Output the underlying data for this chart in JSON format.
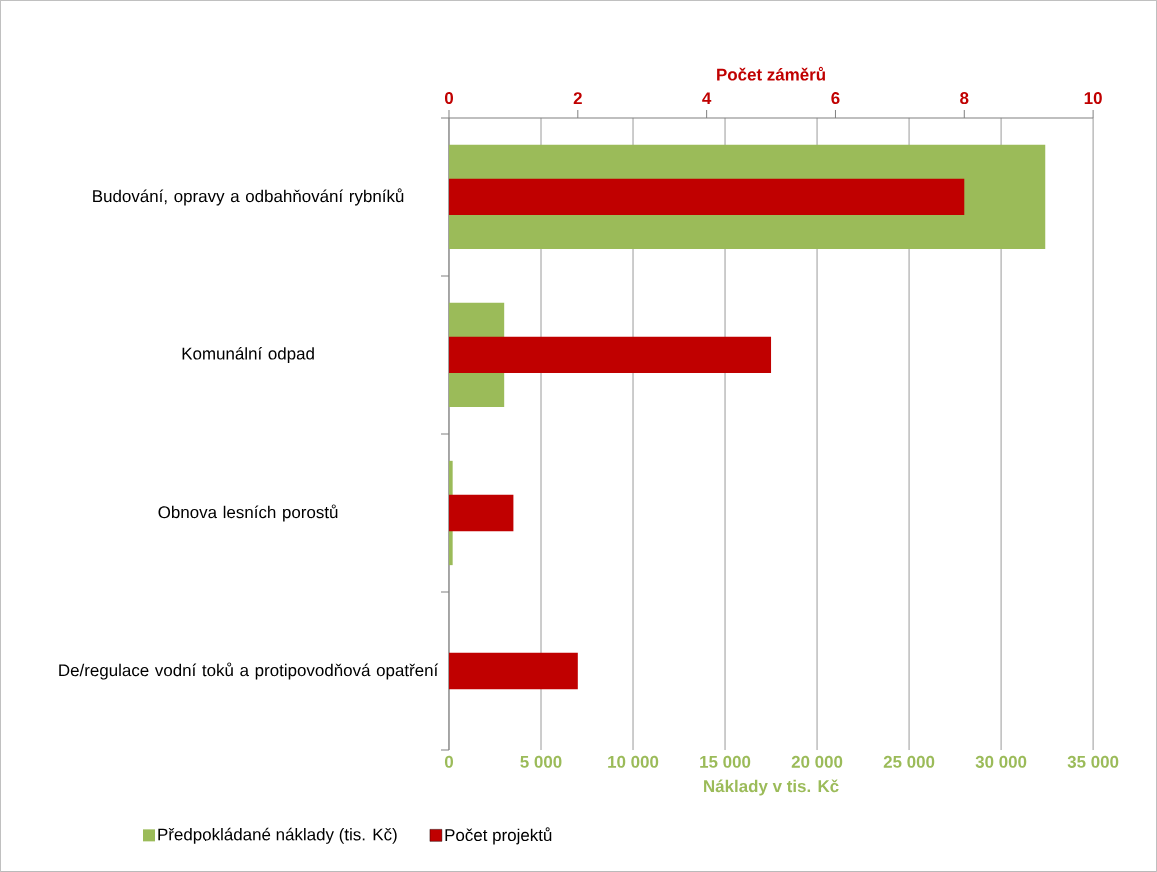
{
  "chart_data": {
    "type": "bar",
    "orientation": "horizontal",
    "categories": [
      "Budování, opravy a odbahňování rybníků",
      "Komunální odpad",
      "Obnova lesních porostů",
      "De/regulace vodní toků a protipovodňová opatření"
    ],
    "series": [
      {
        "name": "Předpokládané náklady (tis. Kč)",
        "color": "#9bbb59",
        "values": [
          32400,
          3000,
          200,
          0
        ]
      },
      {
        "name": "Počet projektů",
        "color": "#c00000",
        "axis": "x2",
        "values": [
          8,
          5,
          1,
          2
        ]
      }
    ],
    "xlabel": "Náklady v tis. Kč",
    "x2label": "Počet záměrů",
    "xlim": [
      0,
      35000
    ],
    "xticks": [
      0,
      {
        "value": 5000,
        "label": "5 000"
      },
      {
        "value": 10000,
        "label": "10 000"
      },
      {
        "value": 15000,
        "label": "15 000"
      },
      {
        "value": 20000,
        "label": "20 000"
      },
      {
        "value": 25000,
        "label": "25 000"
      },
      {
        "value": 30000,
        "label": "30 000"
      },
      {
        "value": 35000,
        "label": "35 000"
      }
    ],
    "x2lim": [
      0,
      10
    ],
    "x2ticks": [
      0,
      2,
      4,
      6,
      8,
      10
    ],
    "grid": "x",
    "legend": "bottom"
  }
}
